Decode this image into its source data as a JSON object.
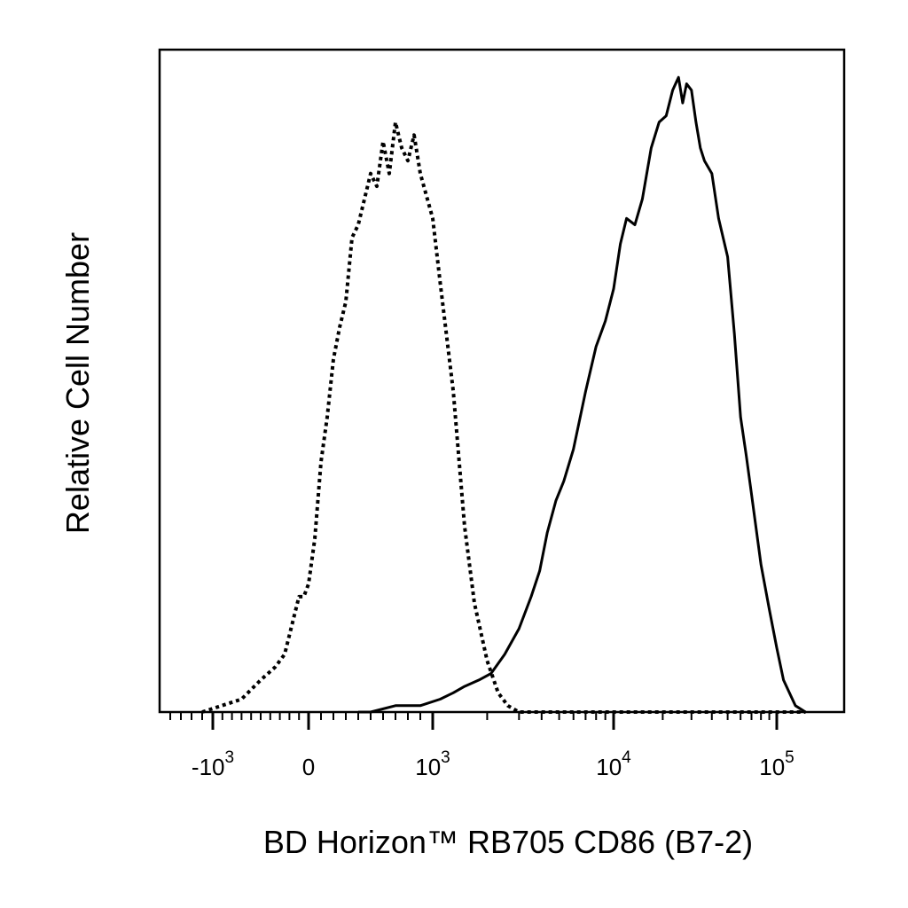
{
  "chart_data": {
    "type": "line",
    "title": "",
    "xlabel": "BD Horizon™ RB705 CD86 (B7-2)",
    "ylabel": "Relative Cell Number",
    "x_scale": "biexponential",
    "xlim": [
      -1500,
      150000
    ],
    "ylim": [
      0,
      100
    ],
    "grid": false,
    "legend": "none",
    "x_ticks": [
      {
        "base": "-10",
        "exp": "3",
        "value": -1000
      },
      {
        "base": "0",
        "exp": "",
        "value": 0
      },
      {
        "base": "10",
        "exp": "3",
        "value": 1000
      },
      {
        "base": "10",
        "exp": "4",
        "value": 10000
      },
      {
        "base": "10",
        "exp": "5",
        "value": 100000
      }
    ],
    "series": [
      {
        "style": "dotted",
        "color": "#000000",
        "x": [
          -1100,
          -700,
          -500,
          -350,
          -250,
          -200,
          -150,
          -100,
          -50,
          0,
          50,
          100,
          150,
          200,
          250,
          300,
          350,
          400,
          450,
          500,
          550,
          600,
          650,
          700,
          750,
          800,
          850,
          900,
          1000,
          1100,
          1300,
          1500,
          1700,
          2000,
          2300,
          2600,
          3000,
          4000,
          6000,
          10000,
          30000,
          150000
        ],
        "y": [
          0,
          2,
          5,
          7,
          9,
          12,
          15,
          18,
          18,
          20,
          27,
          39,
          46,
          55,
          60,
          64,
          74,
          76,
          80,
          84,
          82,
          89,
          84,
          92,
          88,
          86,
          90,
          84,
          77,
          67,
          50,
          29,
          17,
          8,
          3,
          1,
          0,
          0,
          0,
          0,
          0,
          0
        ]
      },
      {
        "style": "solid",
        "color": "#000000",
        "x": [
          400,
          500,
          700,
          900,
          1100,
          1300,
          1500,
          1800,
          2100,
          2500,
          3000,
          3500,
          3900,
          4300,
          4800,
          5300,
          6000,
          7000,
          8000,
          9000,
          10000,
          11000,
          12000,
          13500,
          15000,
          17000,
          19000,
          21000,
          23000,
          25000,
          26500,
          28000,
          30000,
          32000,
          34000,
          36000,
          40000,
          44000,
          50000,
          55000,
          60000,
          65000,
          70000,
          80000,
          90000,
          100000,
          110000,
          130000,
          150000
        ],
        "y": [
          0,
          0,
          1,
          1,
          2,
          3,
          4,
          5,
          6,
          9,
          13,
          18,
          22,
          28,
          33,
          36,
          41,
          50,
          57,
          61,
          66,
          73,
          77,
          76,
          80,
          88,
          92,
          93,
          97,
          99,
          95,
          98,
          97,
          92,
          88,
          86,
          84,
          77,
          71,
          59,
          46,
          40,
          34,
          23,
          16,
          10,
          5,
          1,
          0
        ]
      }
    ]
  }
}
